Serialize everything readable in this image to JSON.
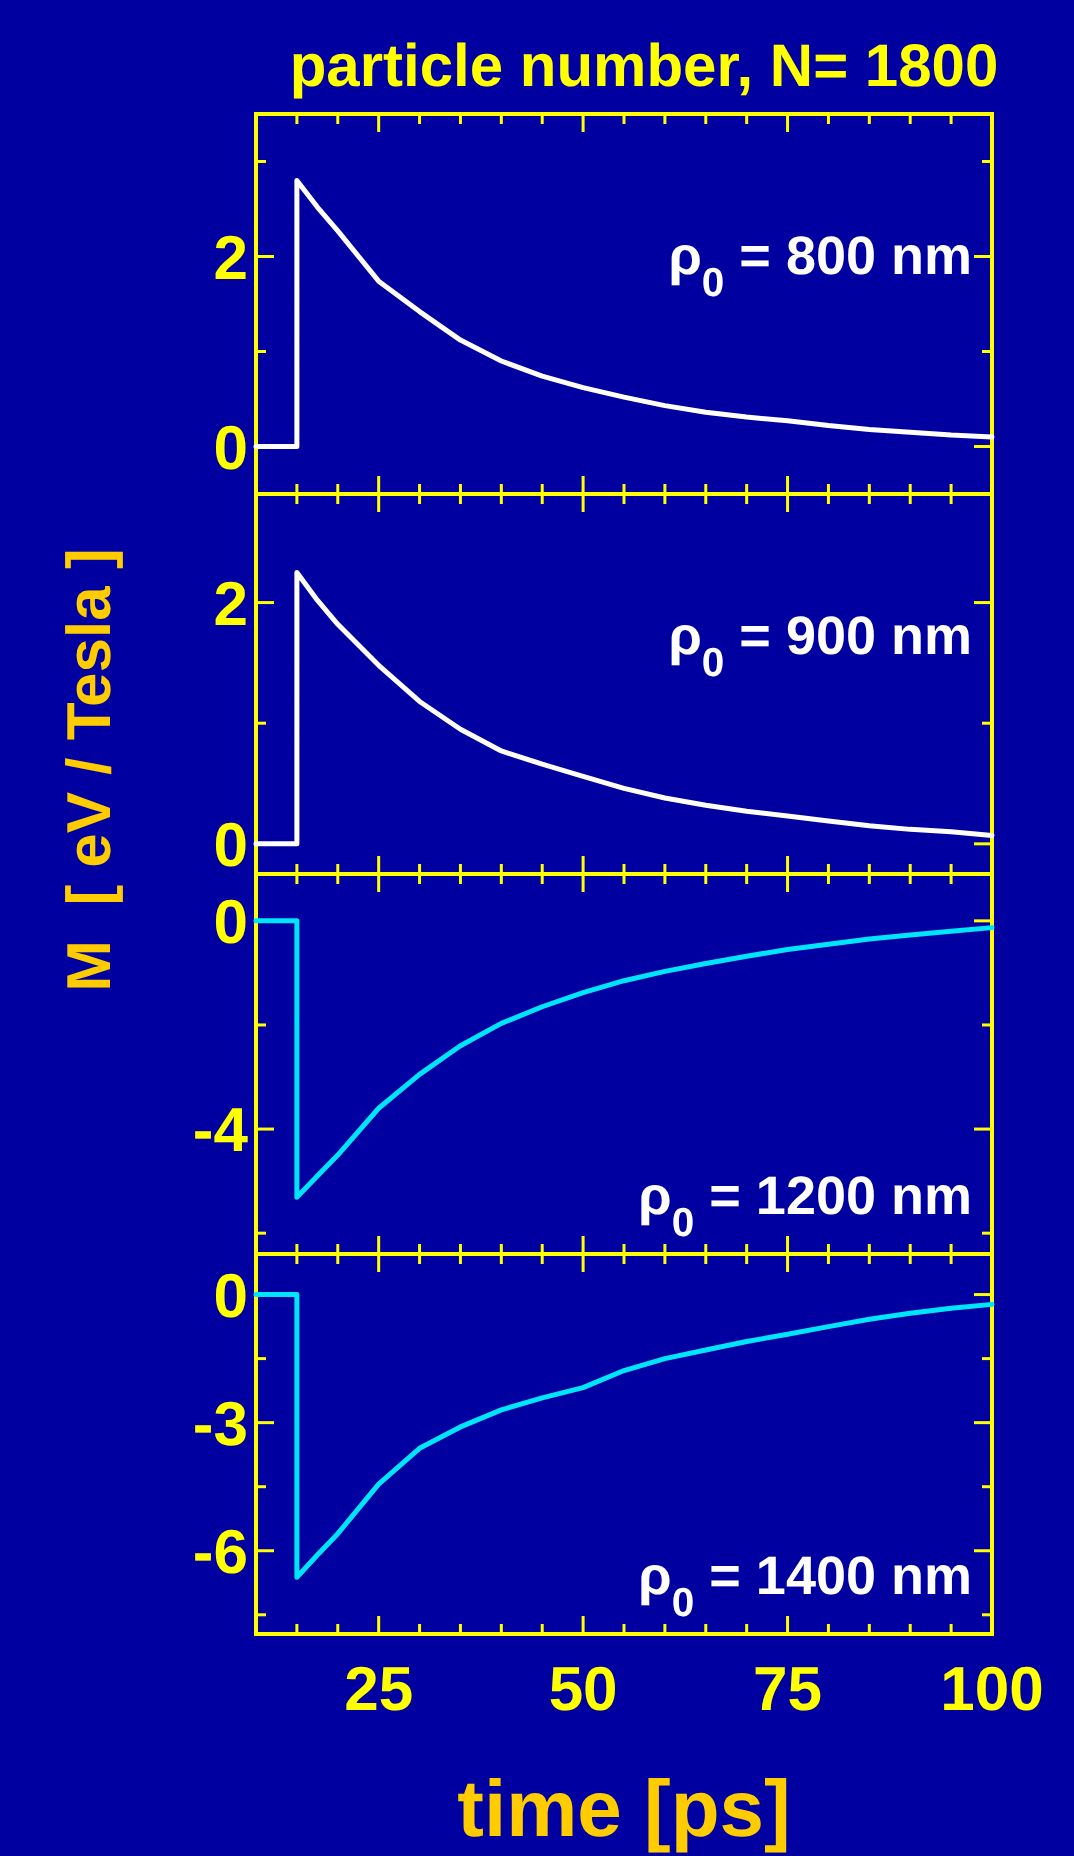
{
  "chart_data": [
    {
      "type": "line",
      "title": "particle number, N= 1800",
      "ylabel": "M  [ eV / Tesla ]",
      "annotations": [
        "ρ$_{0}$ = 800 nm"
      ],
      "tick_labels": "y",
      "x": [
        10,
        15,
        15,
        17.5,
        20,
        25,
        30,
        35,
        40,
        45,
        50,
        55,
        60,
        65,
        70,
        75,
        80,
        85,
        90,
        95,
        100
      ],
      "series": [
        {
          "color": "#ffffff",
          "values": [
            0,
            0,
            2.8,
            2.52,
            2.27,
            1.74,
            1.42,
            1.12,
            0.9,
            0.74,
            0.62,
            0.52,
            0.43,
            0.36,
            0.31,
            0.27,
            0.22,
            0.18,
            0.15,
            0.12,
            0.1
          ]
        }
      ],
      "xlim": [
        10,
        100
      ],
      "xticks": [
        {
          "value": 15,
          "label": null
        },
        {
          "value": 20,
          "label": null
        },
        25,
        {
          "value": 30,
          "label": null
        },
        {
          "value": 35,
          "label": null
        },
        {
          "value": 40,
          "label": null
        },
        {
          "value": 45,
          "label": null
        },
        50,
        {
          "value": 55,
          "label": null
        },
        {
          "value": 60,
          "label": null
        },
        {
          "value": 65,
          "label": null
        },
        {
          "value": 70,
          "label": null
        },
        75,
        {
          "value": 80,
          "label": null
        },
        {
          "value": 85,
          "label": null
        },
        {
          "value": 90,
          "label": null
        },
        {
          "value": 95,
          "label": null
        },
        100
      ],
      "ylim": [
        -0.5,
        3.5
      ],
      "yticks": [
        0,
        {
          "value": 1,
          "label": null
        },
        2,
        {
          "value": 3,
          "label": null
        }
      ]
    },
    {
      "type": "line",
      "annotations": [
        "ρ$_{0}$ = 900 nm"
      ],
      "tick_labels": "y",
      "x": [
        10,
        15,
        15,
        17.5,
        20,
        25,
        30,
        35,
        40,
        45,
        50,
        55,
        60,
        65,
        70,
        75,
        80,
        85,
        90,
        95,
        100
      ],
      "series": [
        {
          "color": "#ffffff",
          "values": [
            0,
            0,
            2.25,
            2.02,
            1.82,
            1.48,
            1.18,
            0.95,
            0.77,
            0.66,
            0.56,
            0.46,
            0.38,
            0.32,
            0.27,
            0.23,
            0.19,
            0.15,
            0.12,
            0.1,
            0.07
          ]
        }
      ],
      "xlim": [
        10,
        100
      ],
      "xticks": [
        {
          "value": 15,
          "label": null
        },
        {
          "value": 20,
          "label": null
        },
        25,
        {
          "value": 30,
          "label": null
        },
        {
          "value": 35,
          "label": null
        },
        {
          "value": 40,
          "label": null
        },
        {
          "value": 45,
          "label": null
        },
        50,
        {
          "value": 55,
          "label": null
        },
        {
          "value": 60,
          "label": null
        },
        {
          "value": 65,
          "label": null
        },
        {
          "value": 70,
          "label": null
        },
        75,
        {
          "value": 80,
          "label": null
        },
        {
          "value": 85,
          "label": null
        },
        {
          "value": 90,
          "label": null
        },
        {
          "value": 95,
          "label": null
        },
        100
      ],
      "ylim": [
        -0.25,
        2.9
      ],
      "yticks": [
        0,
        {
          "value": 1,
          "label": null
        },
        2
      ]
    },
    {
      "type": "line",
      "annotations": [
        "ρ$_{0}$ = 1200 nm"
      ],
      "tick_labels": "y",
      "x": [
        10,
        15,
        15,
        17.5,
        20,
        25,
        30,
        35,
        40,
        45,
        50,
        55,
        60,
        65,
        70,
        75,
        80,
        85,
        90,
        95,
        100
      ],
      "series": [
        {
          "color": "#00e5ff",
          "values": [
            0,
            0,
            -5.31,
            -4.9,
            -4.5,
            -3.6,
            -2.95,
            -2.4,
            -1.97,
            -1.65,
            -1.38,
            -1.15,
            -0.97,
            -0.82,
            -0.68,
            -0.55,
            -0.45,
            -0.35,
            -0.27,
            -0.2,
            -0.13
          ]
        }
      ],
      "xlim": [
        10,
        100
      ],
      "xticks": [
        {
          "value": 15,
          "label": null
        },
        {
          "value": 20,
          "label": null
        },
        25,
        {
          "value": 30,
          "label": null
        },
        {
          "value": 35,
          "label": null
        },
        {
          "value": 40,
          "label": null
        },
        {
          "value": 45,
          "label": null
        },
        50,
        {
          "value": 55,
          "label": null
        },
        {
          "value": 60,
          "label": null
        },
        {
          "value": 65,
          "label": null
        },
        {
          "value": 70,
          "label": null
        },
        75,
        {
          "value": 80,
          "label": null
        },
        {
          "value": 85,
          "label": null
        },
        {
          "value": 90,
          "label": null
        },
        {
          "value": 95,
          "label": null
        },
        100
      ],
      "ylim": [
        -6.4,
        0.9
      ],
      "yticks": [
        {
          "value": -6,
          "label": null
        },
        -4,
        {
          "value": -2,
          "label": null
        },
        0
      ]
    },
    {
      "type": "line",
      "xlabel": "time [ps]",
      "annotations": [
        "ρ$_{0}$ = 1400 nm"
      ],
      "x": [
        10,
        15,
        15,
        17.5,
        20,
        25,
        30,
        35,
        40,
        45,
        50,
        55,
        60,
        65,
        70,
        75,
        80,
        85,
        90,
        95,
        100
      ],
      "series": [
        {
          "color": "#00e5ff",
          "values": [
            0,
            0,
            -6.62,
            -6.1,
            -5.6,
            -4.44,
            -3.6,
            -3.1,
            -2.7,
            -2.42,
            -2.18,
            -1.78,
            -1.5,
            -1.3,
            -1.1,
            -0.93,
            -0.75,
            -0.58,
            -0.44,
            -0.32,
            -0.23
          ]
        }
      ],
      "xlim": [
        10,
        100
      ],
      "xticks": [
        {
          "value": 15,
          "label": null
        },
        {
          "value": 20,
          "label": null
        },
        25,
        {
          "value": 30,
          "label": null
        },
        {
          "value": 35,
          "label": null
        },
        {
          "value": 40,
          "label": null
        },
        {
          "value": 45,
          "label": null
        },
        50,
        {
          "value": 55,
          "label": null
        },
        {
          "value": 60,
          "label": null
        },
        {
          "value": 65,
          "label": null
        },
        {
          "value": 70,
          "label": null
        },
        75,
        {
          "value": 80,
          "label": null
        },
        {
          "value": 85,
          "label": null
        },
        {
          "value": 90,
          "label": null
        },
        {
          "value": 95,
          "label": null
        },
        100
      ],
      "ylim": [
        -7.95,
        0.95
      ],
      "yticks": [
        {
          "value": -7.5,
          "label": null
        },
        -6,
        {
          "value": -4.5,
          "label": null
        },
        -3,
        {
          "value": -1.5,
          "label": null
        },
        0
      ]
    }
  ]
}
